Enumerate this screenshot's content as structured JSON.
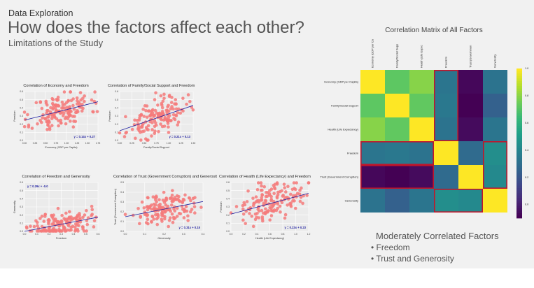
{
  "header": {
    "section": "Data Exploration",
    "title": "How does the factors affect each other?",
    "subtitle": "Limitations of the Study"
  },
  "colors": {
    "background": "#f1f1f1",
    "scatter_point": "#f47a7a",
    "regression_line": "#1f1fa0",
    "highlight_box": "#c0152a"
  },
  "chart_data": [
    {
      "type": "scatter",
      "title": "Correlation of Economy and Freedom",
      "xlabel": "Economy (GDP per Capita)",
      "ylabel": "Freedom",
      "xticks": [
        "0.00",
        "0.25",
        "0.50",
        "0.75",
        "1.00",
        "1.25",
        "1.50",
        "1.75"
      ],
      "yticks": [
        "0.0",
        "0.1",
        "0.2",
        "0.3",
        "0.4",
        "0.5",
        "0.6"
      ],
      "xlim": [
        0,
        1.75
      ],
      "ylim": [
        0,
        0.65
      ],
      "line": {
        "slope": 0.14,
        "intercept": 0.27
      },
      "equation": "y = 0.14x + 0.27",
      "seed": 11,
      "n": 155,
      "spread": 0.12
    },
    {
      "type": "scatter",
      "title": "Correlation of Family/Social Support and Freedom",
      "xlabel": "Family/Social Support",
      "ylabel": "Freedom",
      "xticks": [
        "0.00",
        "0.25",
        "0.50",
        "0.75",
        "1.00",
        "1.25",
        "1.50"
      ],
      "yticks": [
        "0.0",
        "0.1",
        "0.2",
        "0.3",
        "0.4",
        "0.5",
        "0.6"
      ],
      "xlim": [
        0,
        1.6
      ],
      "ylim": [
        0,
        0.65
      ],
      "line": {
        "slope": 0.21,
        "intercept": 0.13
      },
      "equation": "y = 0.21x + 0.13",
      "seed": 23,
      "n": 155,
      "spread": 0.11
    },
    {
      "type": "scatter",
      "title": "Correlation of Freedom and Generosity",
      "xlabel": "Freedom",
      "ylabel": "Generosity",
      "xticks": [
        "0.0",
        "0.1",
        "0.2",
        "0.3",
        "0.4",
        "0.5",
        "0.6"
      ],
      "yticks": [
        "0.0",
        "0.1",
        "0.2",
        "0.3",
        "0.4",
        "0.5",
        "0.6"
      ],
      "xlim": [
        0,
        0.65
      ],
      "ylim": [
        0,
        0.65
      ],
      "line": {
        "slope": 0.29,
        "intercept": 0.0
      },
      "equation": "y = 0.29x + -0.0",
      "seed": 37,
      "n": 155,
      "spread": 0.09
    },
    {
      "type": "scatter",
      "title": "Correlation of Trust (Government Corruption) and Generosit",
      "xlabel": "Generosity",
      "ylabel": "Trust (Government Corruption)",
      "xticks": [
        "0.0",
        "0.1",
        "0.2",
        "0.3",
        "0.4"
      ],
      "yticks": [
        "0.0",
        "0.1",
        "0.2",
        "0.3",
        "0.4",
        "0.5"
      ],
      "xlim": [
        0,
        0.5
      ],
      "ylim": [
        0,
        0.5
      ],
      "line": {
        "slope": 0.31,
        "intercept": 0.15
      },
      "equation": "y = 0.31x + 0.15",
      "seed": 51,
      "n": 155,
      "spread": 0.08
    },
    {
      "type": "scatter",
      "title": "Correlation of Health (Life Expectancy) and Freedom",
      "xlabel": "Health (Life Expectancy)",
      "ylabel": "Freedom",
      "xticks": [
        "0.0",
        "0.2",
        "0.4",
        "0.6",
        "0.8",
        "1.0",
        "1.2"
      ],
      "yticks": [
        "0.0",
        "0.1",
        "0.2",
        "0.3",
        "0.4",
        "0.5",
        "0.6"
      ],
      "xlim": [
        0,
        1.2
      ],
      "ylim": [
        0,
        0.65
      ],
      "line": {
        "slope": 0.23,
        "intercept": 0.23
      },
      "equation": "y = 0.23x + 0.23",
      "seed": 67,
      "n": 155,
      "spread": 0.12
    },
    {
      "type": "heatmap",
      "title": "Correlation Matrix of All Factors",
      "rows": [
        "Economy (GDP per Capita)",
        "Family/Social Support",
        "Health (Life Expectancy)",
        "Freedom",
        "Trust (Government Corruption)",
        "Generosity"
      ],
      "cols": [
        "Economy (GDP per Ca",
        "Family/Social Supp",
        "Health (Life Expec",
        "Freedom",
        "Trust (Governmen",
        "Generosity"
      ],
      "values": [
        [
          1.0,
          0.72,
          0.8,
          0.33,
          -0.08,
          0.32
        ],
        [
          0.72,
          1.0,
          0.73,
          0.34,
          -0.1,
          0.24
        ],
        [
          0.8,
          0.73,
          1.0,
          0.32,
          -0.07,
          0.33
        ],
        [
          0.33,
          0.34,
          0.32,
          1.0,
          0.28,
          0.44
        ],
        [
          -0.08,
          -0.1,
          -0.07,
          0.28,
          1.0,
          0.42
        ],
        [
          0.32,
          0.24,
          0.33,
          0.44,
          0.42,
          1.0
        ]
      ],
      "colorbar_ticks": [
        "1.0",
        "0.8",
        "0.6",
        "0.4",
        "0.2",
        "0.0"
      ],
      "vmin": -0.1,
      "vmax": 1.0,
      "highlights": [
        {
          "row_start": 0,
          "row_end": 2,
          "col_start": 3,
          "col_end": 3
        },
        {
          "row_start": 3,
          "row_end": 3,
          "col_start": 0,
          "col_end": 2
        },
        {
          "row_start": 3,
          "row_end": 4,
          "col_start": 5,
          "col_end": 5
        },
        {
          "row_start": 4,
          "row_end": 4,
          "col_start": 0,
          "col_end": 2
        },
        {
          "row_start": 5,
          "row_end": 5,
          "col_start": 3,
          "col_end": 4
        }
      ]
    }
  ],
  "conclusion": {
    "title": "Moderately Correlated Factors",
    "items": [
      "Freedom",
      "Trust and Generosity"
    ]
  }
}
